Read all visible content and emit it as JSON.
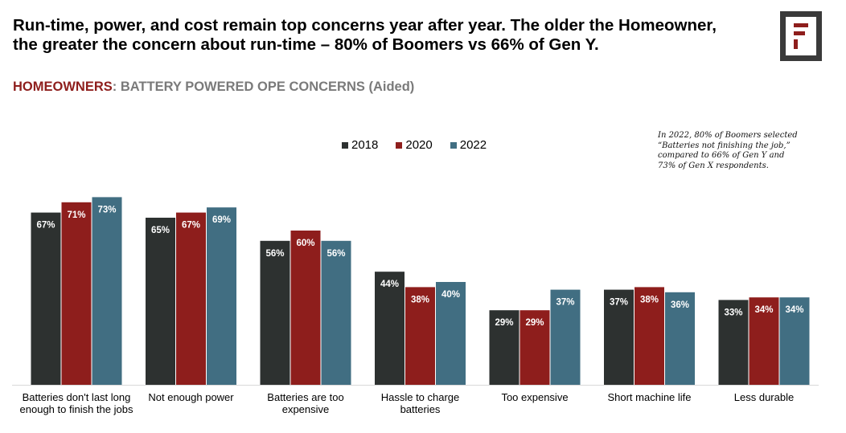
{
  "header": {
    "headline_line1": "Run-time, power, and cost remain top concerns year after year.  The older the Homeowner,",
    "headline_line2": "the greater the concern about run-time – 80% of Boomers vs 66% of Gen Y.",
    "subtitle_highlight": "HOMEOWNERS",
    "subtitle_rest": ": BATTERY POWERED OPE CONCERNS (Aided)"
  },
  "logo": {
    "icon": "brand-logo-icon",
    "color": "#8e1e1c"
  },
  "annotation": "In 2022, 80% of Boomers selected “Batteries not finishing the job,” compared to 66% of Gen Y and 73% of Gen X respondents.",
  "chart_data": {
    "type": "bar",
    "categories": [
      [
        "Batteries don't last long",
        "enough to finish the jobs"
      ],
      [
        "Not enough power"
      ],
      [
        "Batteries are too",
        "expensive"
      ],
      [
        "Hassle to charge",
        "batteries"
      ],
      [
        "Too expensive"
      ],
      [
        "Short machine life"
      ],
      [
        "Less durable"
      ]
    ],
    "series": [
      {
        "name": "2018",
        "color": "#2d3130",
        "values": [
          67,
          65,
          56,
          44,
          29,
          37,
          33
        ]
      },
      {
        "name": "2020",
        "color": "#8e1e1c",
        "values": [
          71,
          67,
          60,
          38,
          29,
          38,
          34
        ]
      },
      {
        "name": "2022",
        "color": "#416e82",
        "values": [
          73,
          69,
          56,
          40,
          37,
          36,
          34
        ]
      }
    ],
    "value_suffix": "%",
    "ylim": [
      0,
      80
    ],
    "legend_position": "top",
    "grid": false
  }
}
